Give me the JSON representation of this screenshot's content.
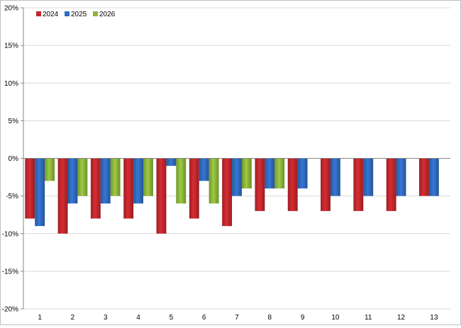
{
  "chart_data": {
    "type": "bar",
    "categories": [
      "1",
      "2",
      "3",
      "4",
      "5",
      "6",
      "7",
      "8",
      "9",
      "10",
      "11",
      "12",
      "13"
    ],
    "series": [
      {
        "name": "2024",
        "color": "#c0272d",
        "values": [
          -8,
          -10,
          -8,
          -8,
          -10,
          -8,
          -9,
          -7,
          -7,
          -7,
          -7,
          -7,
          -5
        ]
      },
      {
        "name": "2025",
        "color": "#2f6bbf",
        "values": [
          -9,
          -6,
          -6,
          -6,
          -1,
          -3,
          -5,
          -4,
          -4,
          -5,
          -5,
          -5,
          -5
        ]
      },
      {
        "name": "2026",
        "color": "#8cb53a",
        "values": [
          -3,
          -5,
          -5,
          -5,
          -6,
          -6,
          -4,
          -4,
          null,
          null,
          null,
          null,
          null
        ]
      }
    ],
    "yticks": [
      "-20%",
      "-15%",
      "-10%",
      "-5%",
      "0%",
      "5%",
      "10%",
      "15%",
      "20%"
    ],
    "ytick_values": [
      -20,
      -15,
      -10,
      -5,
      0,
      5,
      10,
      15,
      20
    ],
    "ylim": [
      -20,
      20
    ],
    "grid": true,
    "legend_position": "top-left"
  }
}
